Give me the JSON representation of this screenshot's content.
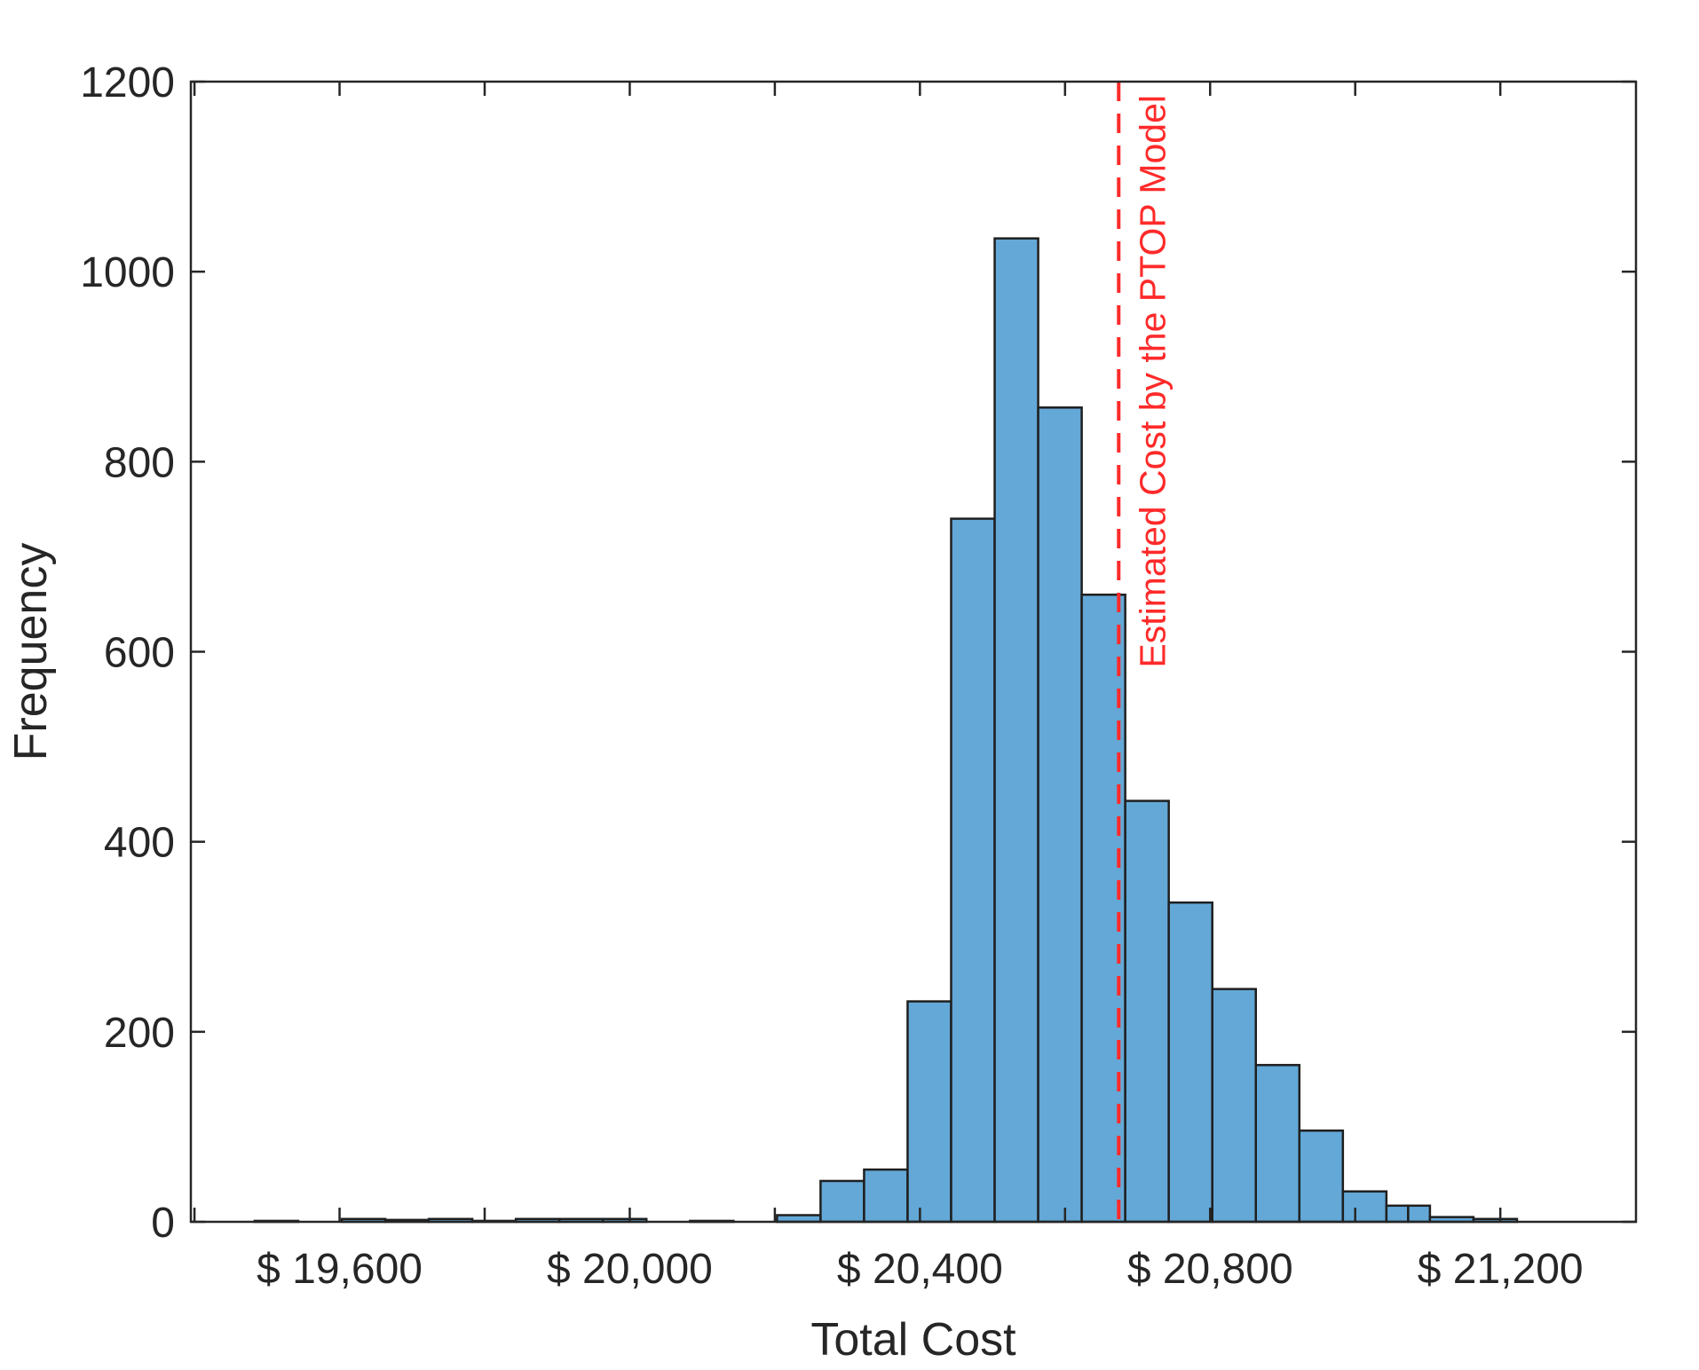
{
  "chart_data": {
    "type": "bar",
    "xlabel": "Total Cost",
    "ylabel": "Frequency",
    "xlim": [
      19395,
      21387
    ],
    "ylim": [
      0,
      1200
    ],
    "yticks": [
      0,
      200,
      400,
      600,
      800,
      1000,
      1200
    ],
    "ytick_labels": [
      "0",
      "200",
      "400",
      "600",
      "800",
      "1000",
      "1200"
    ],
    "xticks": [
      19600,
      20000,
      20400,
      20800,
      21200
    ],
    "xtick_labels": [
      "$ 19,600",
      "$ 20,000",
      "$ 20,400",
      "$ 20,800",
      "$ 21,200"
    ],
    "minor_xticks": [
      19400,
      19800,
      20200,
      20600,
      21000
    ],
    "grid": false,
    "bar_color": "#63A8D7",
    "edge_color": "#1F1F1F",
    "bins": [
      {
        "x0": 19483,
        "x1": 19543,
        "value": 1
      },
      {
        "x0": 19603,
        "x1": 19663,
        "value": 3
      },
      {
        "x0": 19663,
        "x1": 19723,
        "value": 2
      },
      {
        "x0": 19723,
        "x1": 19783,
        "value": 3
      },
      {
        "x0": 19783,
        "x1": 19843,
        "value": 1
      },
      {
        "x0": 19843,
        "x1": 19903,
        "value": 3
      },
      {
        "x0": 19903,
        "x1": 19963,
        "value": 3
      },
      {
        "x0": 19963,
        "x1": 20023,
        "value": 3
      },
      {
        "x0": 20083,
        "x1": 20143,
        "value": 1
      },
      {
        "x0": 20203,
        "x1": 20263,
        "value": 7
      },
      {
        "x0": 20263,
        "x1": 20323,
        "value": 43
      },
      {
        "x0": 20323,
        "x1": 20383,
        "value": 55
      },
      {
        "x0": 20383,
        "x1": 20443,
        "value": 232
      },
      {
        "x0": 20443,
        "x1": 20503,
        "value": 740
      },
      {
        "x0": 20503,
        "x1": 20563,
        "value": 1035
      },
      {
        "x0": 20563,
        "x1": 20623,
        "value": 857
      },
      {
        "x0": 20623,
        "x1": 20683,
        "value": 660
      },
      {
        "x0": 20683,
        "x1": 20743,
        "value": 443
      },
      {
        "x0": 20743,
        "x1": 20803,
        "value": 336
      },
      {
        "x0": 20803,
        "x1": 20863,
        "value": 245
      },
      {
        "x0": 20863,
        "x1": 20923,
        "value": 165
      },
      {
        "x0": 20923,
        "x1": 20983,
        "value": 96
      },
      {
        "x0": 20983,
        "x1": 21043,
        "value": 32
      },
      {
        "x0": 21043,
        "x1": 21073,
        "value": 17
      },
      {
        "x0": 21073,
        "x1": 21103,
        "value": 17
      },
      {
        "x0": 21103,
        "x1": 21163,
        "value": 5
      },
      {
        "x0": 21163,
        "x1": 21223,
        "value": 3
      }
    ],
    "reference_line": {
      "x": 20674,
      "label": "Estimated Cost by the PTOP Model",
      "color": "#FF2A2A",
      "style": "dashed"
    }
  }
}
